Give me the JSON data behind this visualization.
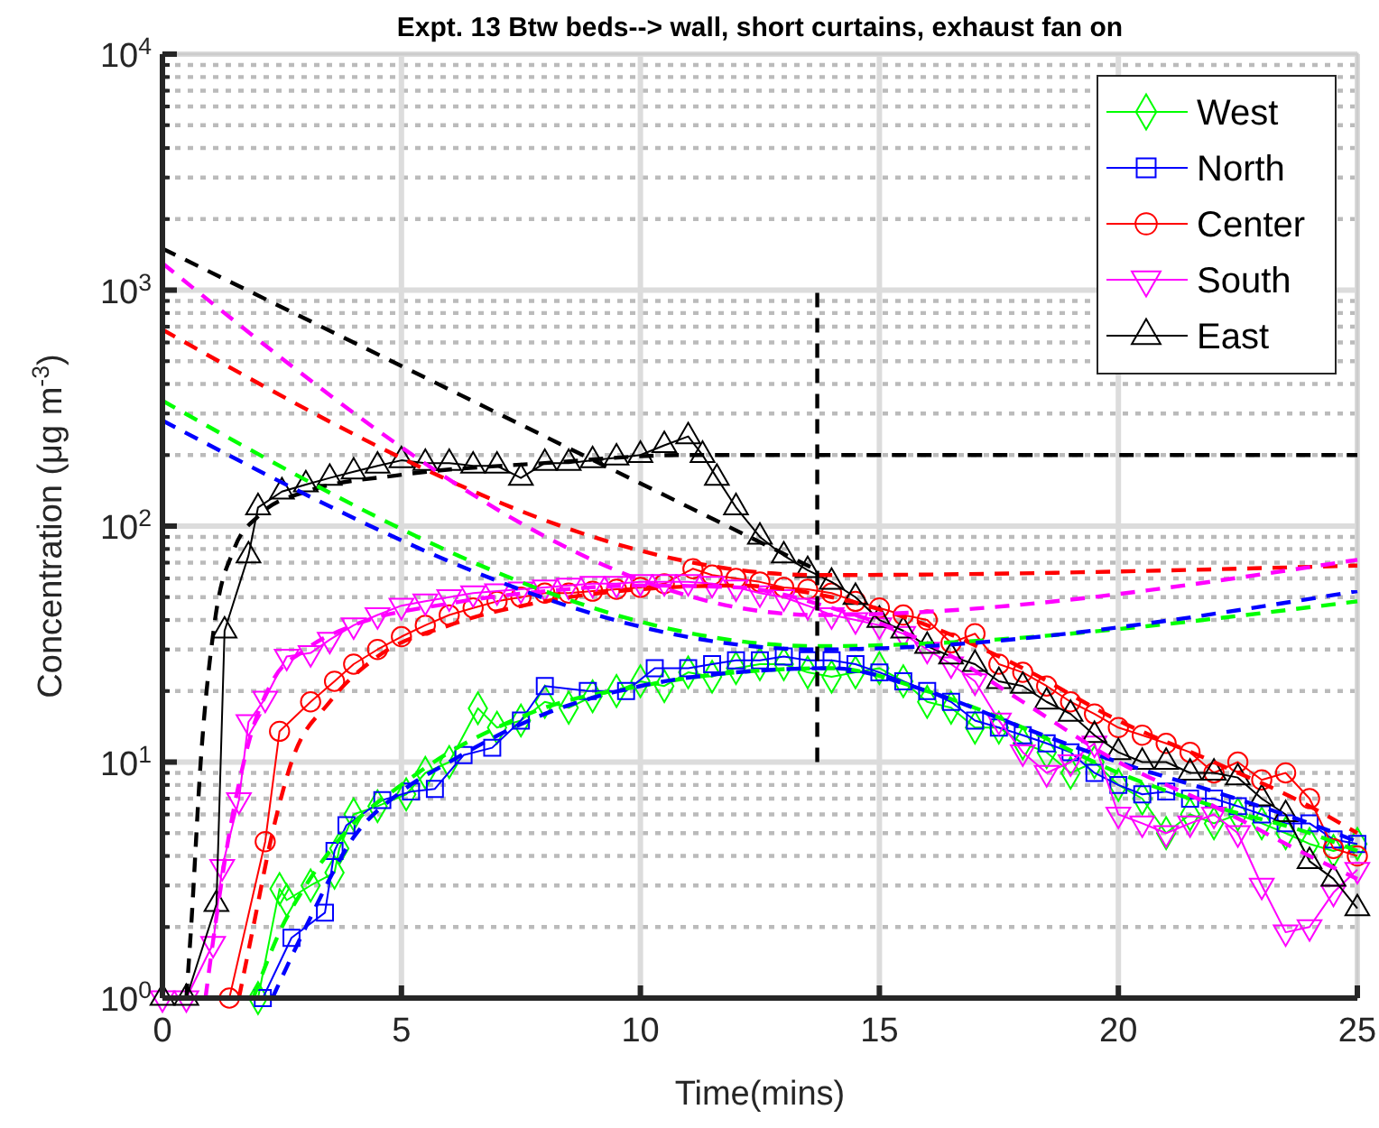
{
  "chart_data": {
    "type": "line",
    "title": "Expt. 13 Btw beds--> wall, short curtains, exhaust fan on",
    "xlabel": "Time(mins)",
    "ylabel": "Concentration (μg m$^{-3}$)",
    "log": "y",
    "grid": true,
    "legend": "top right",
    "xlim": [
      0,
      25
    ],
    "xticks": [
      0,
      5,
      10,
      15,
      20,
      25
    ],
    "ylim": [
      1,
      10000
    ],
    "yticks": [
      {
        "value": 1,
        "label": "10$^{0}$"
      },
      {
        "value": 10,
        "label": "10$^{1}$"
      },
      {
        "value": 100,
        "label": "10$^{2}$"
      },
      {
        "value": 1000,
        "label": "10$^{3}$"
      },
      {
        "value": 10000,
        "label": "10$^{4}$"
      }
    ],
    "series": [
      {
        "name": "West",
        "color": "#00ff00",
        "marker": "diamond",
        "line_style": "solid",
        "x": [
          2,
          2.45,
          2.6,
          3.1,
          3.6,
          3.7,
          4,
          4.5,
          5.1,
          5.5,
          6,
          6.6,
          7,
          7.5,
          8,
          8.5,
          9,
          9.5,
          10,
          10.5,
          11,
          11.5,
          12,
          12.5,
          13,
          13.5,
          14,
          14.5,
          15,
          15.5,
          16,
          16.5,
          17,
          17.5,
          18,
          18.5,
          19,
          19.5,
          20,
          20.5,
          21,
          21.5,
          22,
          22.5,
          23,
          23.5,
          24,
          24.5,
          25
        ],
        "values": [
          1,
          2.9,
          2.6,
          3,
          3.4,
          4.3,
          6,
          6.5,
          7.3,
          9,
          10,
          16.9,
          14,
          15,
          18,
          17,
          19,
          20,
          22,
          21,
          24,
          23,
          25,
          26,
          26,
          24,
          23,
          24,
          25,
          22,
          18,
          17,
          14,
          14,
          12,
          11,
          9,
          10,
          8,
          7,
          5,
          6,
          5.5,
          6,
          5.5,
          5,
          4.5,
          4.2,
          4.5
        ]
      },
      {
        "name": "North",
        "color": "#0000ff",
        "marker": "square",
        "line_style": "solid",
        "x": [
          2.1,
          2.7,
          3.4,
          3.6,
          3.85,
          4.6,
          5.2,
          5.7,
          6.3,
          6.9,
          7.5,
          8,
          8.9,
          9.7,
          10.3,
          11,
          11.5,
          12,
          12.5,
          13,
          13.5,
          14,
          14.5,
          15,
          15.5,
          16,
          16.5,
          17,
          17.5,
          18,
          18.5,
          19,
          19.5,
          20,
          20.5,
          21,
          21.5,
          22,
          22.5,
          23,
          23.5,
          24,
          24.5,
          25
        ],
        "values": [
          1,
          1.8,
          2.3,
          4.2,
          5.4,
          6.9,
          7.5,
          7.7,
          10.7,
          11.5,
          15,
          21,
          20,
          20,
          25,
          25,
          26,
          27,
          27,
          28,
          27,
          27,
          26,
          24,
          22,
          20,
          18,
          15,
          14,
          13,
          12,
          11,
          9,
          8,
          7.3,
          7.5,
          7,
          7,
          6.5,
          6,
          5.5,
          5.5,
          4.7,
          4.5
        ]
      },
      {
        "name": "Center",
        "color": "#ff0000",
        "marker": "circle",
        "line_style": "solid",
        "x": [
          1.4,
          2.15,
          2.45,
          3.1,
          3.6,
          4,
          4.5,
          5,
          5.5,
          6,
          6.5,
          7,
          7.5,
          8,
          8.5,
          9,
          9.5,
          10,
          10.5,
          11.1,
          11.5,
          12,
          12.5,
          13,
          13.5,
          14,
          14.5,
          15,
          15.5,
          16,
          16.5,
          17,
          17.5,
          18,
          18.5,
          19,
          19.5,
          20,
          20.5,
          21,
          21.5,
          22,
          22.5,
          23,
          23.5,
          24,
          24.5,
          25
        ],
        "values": [
          1,
          4.6,
          13.5,
          18,
          22,
          26,
          30,
          34,
          38,
          42,
          45,
          48,
          50,
          52,
          52,
          53,
          54,
          55,
          57,
          66,
          62,
          60,
          58,
          55,
          54,
          52,
          48,
          45,
          42,
          40,
          32,
          35,
          26,
          24,
          21,
          18,
          16,
          14,
          13,
          12,
          11,
          9,
          10,
          8.4,
          9,
          7,
          4.3,
          4
        ]
      },
      {
        "name": "South",
        "color": "#ff00ff",
        "marker": "triangle-down",
        "line_style": "solid",
        "x": [
          0,
          0.5,
          1.06,
          1.25,
          1.6,
          1.8,
          2.15,
          2.6,
          3.1,
          3.5,
          4,
          4.5,
          5,
          5.5,
          6,
          6.5,
          7,
          7.5,
          8,
          8.5,
          9,
          9.5,
          10,
          10.5,
          11,
          11.5,
          12,
          12.5,
          13,
          13.5,
          14,
          14.5,
          15,
          15.5,
          16,
          16.5,
          17,
          17.5,
          18,
          18.5,
          19,
          19.5,
          20,
          20.5,
          21,
          21.5,
          22,
          22.5,
          23,
          23.5,
          24,
          24.5,
          25
        ],
        "values": [
          1,
          1,
          1.7,
          3.6,
          6.9,
          14.8,
          18.6,
          28,
          29,
          33,
          38,
          42,
          46,
          48,
          50,
          52,
          53,
          54,
          55,
          56,
          57,
          57,
          58,
          58,
          58,
          57,
          55,
          52,
          50,
          46,
          42,
          40,
          38,
          35,
          30,
          26,
          22,
          15,
          11,
          9,
          10,
          12,
          6,
          5.5,
          5,
          5.5,
          6,
          5,
          3,
          1.9,
          2,
          2.8,
          3.5
        ]
      },
      {
        "name": "East",
        "color": "#000000",
        "marker": "triangle",
        "line_style": "solid",
        "x": [
          0,
          0.5,
          1.13,
          1.3,
          1.8,
          2,
          2.5,
          3,
          3.5,
          4,
          4.5,
          5,
          5.5,
          6,
          6.5,
          7,
          7.5,
          8,
          8.5,
          9,
          9.5,
          10,
          10.5,
          11,
          11.3,
          11.6,
          12,
          12.5,
          13,
          13.5,
          14,
          14.5,
          15,
          15.5,
          16,
          16.5,
          17,
          17.5,
          18,
          18.5,
          19,
          19.5,
          20,
          20.5,
          21,
          21.5,
          22,
          22.5,
          23,
          23.5,
          24,
          24.5,
          25
        ],
        "values": [
          1,
          1,
          2.5,
          36,
          75,
          120,
          140,
          150,
          160,
          170,
          180,
          190,
          185,
          185,
          180,
          180,
          160,
          185,
          185,
          190,
          195,
          200,
          220,
          240,
          200,
          160,
          120,
          90,
          75,
          65,
          58,
          50,
          40,
          36,
          31,
          28,
          26,
          22,
          21,
          18,
          16,
          13,
          11,
          10,
          10,
          9,
          9,
          8.6,
          7,
          6,
          3.8,
          3.2,
          2.4
        ]
      },
      {
        "color": "#00ff00",
        "marker": "none",
        "line_style": "dashed",
        "x": [
          1.9,
          2.5,
          3,
          4,
          5,
          6,
          7,
          8,
          10,
          12,
          14,
          16,
          18,
          20,
          22,
          24,
          25
        ],
        "values": [
          1,
          2,
          3,
          5.5,
          8,
          11,
          14,
          17,
          21,
          24,
          25,
          20,
          14,
          9,
          6.5,
          5,
          4.2
        ]
      },
      {
        "color": "#0000ff",
        "marker": "none",
        "line_style": "dashed",
        "x": [
          2.3,
          3,
          4,
          5,
          6,
          8,
          10,
          12,
          14,
          16,
          18,
          20,
          22,
          24,
          25
        ],
        "values": [
          1,
          2,
          4.8,
          7.5,
          10,
          16,
          21,
          24,
          25,
          20,
          14,
          10,
          7.5,
          5.5,
          4.6
        ]
      },
      {
        "color": "#ff0000",
        "marker": "none",
        "line_style": "dashed",
        "x": [
          1.6,
          1.9,
          2.3,
          2.7,
          3.5,
          4.5,
          6,
          8,
          10,
          12,
          14,
          16,
          18,
          20,
          22,
          24,
          25
        ],
        "values": [
          1,
          2,
          5,
          10,
          18,
          28,
          38,
          48,
          54,
          56,
          50,
          38,
          25,
          15,
          10,
          6.5,
          5
        ]
      },
      {
        "color": "#ff00ff",
        "marker": "none",
        "line_style": "dashed",
        "x": [
          0.9,
          1.1,
          1.4,
          1.8,
          2.3,
          3,
          4,
          6,
          8,
          10,
          12,
          14,
          16,
          18,
          20,
          22,
          24,
          25
        ],
        "values": [
          1,
          2,
          5,
          12,
          22,
          30,
          38,
          47,
          53,
          56,
          55,
          45,
          32,
          18,
          10,
          6.5,
          4,
          3.2
        ]
      },
      {
        "color": "#000000",
        "marker": "none",
        "line_style": "dashed",
        "x": [
          0.5,
          0.6,
          0.8,
          1.1,
          1.5,
          2,
          3,
          5,
          8,
          10.9,
          25
        ],
        "values": [
          1,
          2,
          10,
          40,
          80,
          110,
          140,
          165,
          185,
          200,
          200
        ]
      },
      {
        "color": "#00ff00",
        "marker": "none",
        "line_style": "dashed",
        "x": [
          0,
          13.7,
          25
        ],
        "values": [
          340,
          31,
          48
        ]
      },
      {
        "color": "#0000ff",
        "marker": "none",
        "line_style": "dashed",
        "x": [
          0,
          13.7,
          25
        ],
        "values": [
          280,
          30,
          53
        ]
      },
      {
        "color": "#ff0000",
        "marker": "none",
        "line_style": "dashed",
        "x": [
          0,
          13.7,
          25
        ],
        "values": [
          680,
          62,
          68
        ]
      },
      {
        "color": "#ff00ff",
        "marker": "none",
        "line_style": "dashed",
        "x": [
          0,
          13.7,
          25
        ],
        "values": [
          1300,
          42,
          72
        ]
      },
      {
        "color": "#000000",
        "marker": "none",
        "line_style": "dashed",
        "x": [
          0,
          13.7
        ],
        "values": [
          1500,
          65
        ]
      },
      {
        "color": "#000000",
        "marker": "none",
        "line_style": "dashed",
        "x": [
          13.7,
          13.7
        ],
        "values": [
          10,
          1000
        ]
      }
    ]
  }
}
